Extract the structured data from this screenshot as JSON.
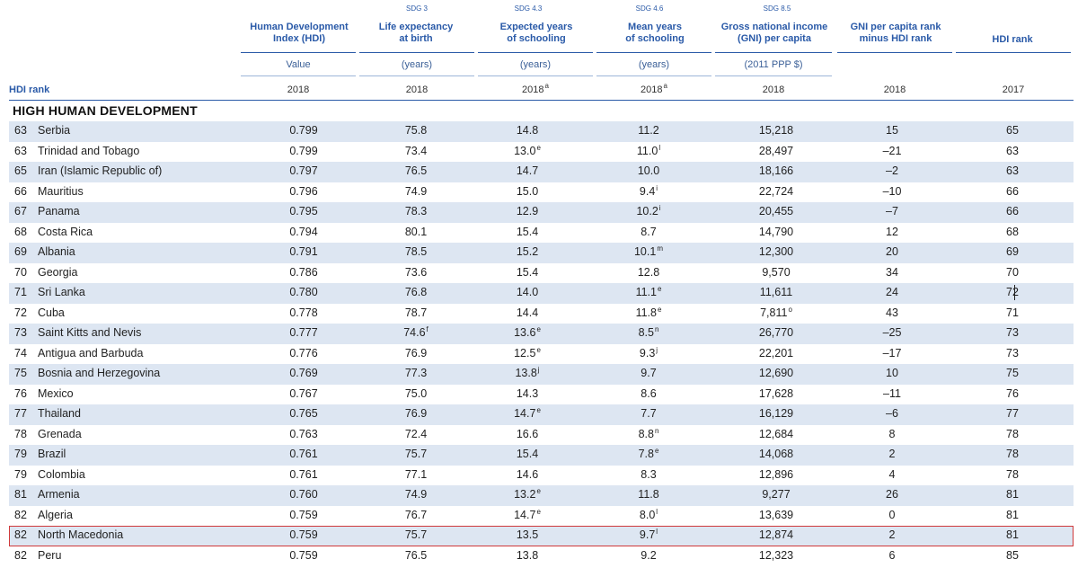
{
  "header": {
    "sdg_labels": [
      "SDG 3",
      "SDG 4.3",
      "SDG 4.6",
      "SDG 8.5"
    ],
    "columns": {
      "hdi": {
        "line1": "Human Development",
        "line2": "Index (HDI)",
        "unit": "Value",
        "year": "2018"
      },
      "life": {
        "line1": "Life expectancy",
        "line2": "at birth",
        "unit": "(years)",
        "year": "2018"
      },
      "exp": {
        "line1": "Expected years",
        "line2": "of schooling",
        "unit": "(years)",
        "year": "2018",
        "year_note": "a"
      },
      "mean": {
        "line1": "Mean years",
        "line2": "of schooling",
        "unit": "(years)",
        "year": "2018",
        "year_note": "a"
      },
      "gni": {
        "line1": "Gross national income",
        "line2": "(GNI) per capita",
        "unit": "(2011 PPP $)",
        "year": "2018"
      },
      "gnirank": {
        "line1": "GNI per capita rank",
        "line2": "minus HDI rank",
        "year": "2018"
      },
      "hdi17": {
        "line1": "HDI rank",
        "year": "2017"
      }
    },
    "rank_label": "HDI rank"
  },
  "section_title": "HIGH HUMAN DEVELOPMENT",
  "rows": [
    {
      "rank": "63",
      "country": "Serbia",
      "hdi": "0.799",
      "life": "75.8",
      "life_n": "",
      "exp": "14.8",
      "exp_n": "",
      "mean": "11.2",
      "mean_n": "",
      "gni": "15,218",
      "gni_n": "",
      "gnirank": "15",
      "hdi17": "65"
    },
    {
      "rank": "63",
      "country": "Trinidad and Tobago",
      "hdi": "0.799",
      "life": "73.4",
      "life_n": "",
      "exp": "13.0",
      "exp_n": "e",
      "mean": "11.0",
      "mean_n": "l",
      "gni": "28,497",
      "gni_n": "",
      "gnirank": "–21",
      "hdi17": "63"
    },
    {
      "rank": "65",
      "country": "Iran (Islamic Republic of)",
      "hdi": "0.797",
      "life": "76.5",
      "life_n": "",
      "exp": "14.7",
      "exp_n": "",
      "mean": "10.0",
      "mean_n": "",
      "gni": "18,166",
      "gni_n": "",
      "gnirank": "–2",
      "hdi17": "63"
    },
    {
      "rank": "66",
      "country": "Mauritius",
      "hdi": "0.796",
      "life": "74.9",
      "life_n": "",
      "exp": "15.0",
      "exp_n": "",
      "mean": "9.4",
      "mean_n": "i",
      "gni": "22,724",
      "gni_n": "",
      "gnirank": "–10",
      "hdi17": "66"
    },
    {
      "rank": "67",
      "country": "Panama",
      "hdi": "0.795",
      "life": "78.3",
      "life_n": "",
      "exp": "12.9",
      "exp_n": "",
      "mean": "10.2",
      "mean_n": "i",
      "gni": "20,455",
      "gni_n": "",
      "gnirank": "–7",
      "hdi17": "66"
    },
    {
      "rank": "68",
      "country": "Costa Rica",
      "hdi": "0.794",
      "life": "80.1",
      "life_n": "",
      "exp": "15.4",
      "exp_n": "",
      "mean": "8.7",
      "mean_n": "",
      "gni": "14,790",
      "gni_n": "",
      "gnirank": "12",
      "hdi17": "68"
    },
    {
      "rank": "69",
      "country": "Albania",
      "hdi": "0.791",
      "life": "78.5",
      "life_n": "",
      "exp": "15.2",
      "exp_n": "",
      "mean": "10.1",
      "mean_n": "m",
      "gni": "12,300",
      "gni_n": "",
      "gnirank": "20",
      "hdi17": "69"
    },
    {
      "rank": "70",
      "country": "Georgia",
      "hdi": "0.786",
      "life": "73.6",
      "life_n": "",
      "exp": "15.4",
      "exp_n": "",
      "mean": "12.8",
      "mean_n": "",
      "gni": "9,570",
      "gni_n": "",
      "gnirank": "34",
      "hdi17": "70"
    },
    {
      "rank": "71",
      "country": "Sri Lanka",
      "hdi": "0.780",
      "life": "76.8",
      "life_n": "",
      "exp": "14.0",
      "exp_n": "",
      "mean": "11.1",
      "mean_n": "e",
      "gni": "11,611",
      "gni_n": "",
      "gnirank": "24",
      "hdi17": "72"
    },
    {
      "rank": "72",
      "country": "Cuba",
      "hdi": "0.778",
      "life": "78.7",
      "life_n": "",
      "exp": "14.4",
      "exp_n": "",
      "mean": "11.8",
      "mean_n": "e",
      "gni": "7,811",
      "gni_n": "o",
      "gnirank": "43",
      "hdi17": "71"
    },
    {
      "rank": "73",
      "country": "Saint Kitts and Nevis",
      "hdi": "0.777",
      "life": "74.6",
      "life_n": "f",
      "exp": "13.6",
      "exp_n": "e",
      "mean": "8.5",
      "mean_n": "n",
      "gni": "26,770",
      "gni_n": "",
      "gnirank": "–25",
      "hdi17": "73"
    },
    {
      "rank": "74",
      "country": "Antigua and Barbuda",
      "hdi": "0.776",
      "life": "76.9",
      "life_n": "",
      "exp": "12.5",
      "exp_n": "e",
      "mean": "9.3",
      "mean_n": "j",
      "gni": "22,201",
      "gni_n": "",
      "gnirank": "–17",
      "hdi17": "73"
    },
    {
      "rank": "75",
      "country": "Bosnia and Herzegovina",
      "hdi": "0.769",
      "life": "77.3",
      "life_n": "",
      "exp": "13.8",
      "exp_n": "j",
      "mean": "9.7",
      "mean_n": "",
      "gni": "12,690",
      "gni_n": "",
      "gnirank": "10",
      "hdi17": "75"
    },
    {
      "rank": "76",
      "country": "Mexico",
      "hdi": "0.767",
      "life": "75.0",
      "life_n": "",
      "exp": "14.3",
      "exp_n": "",
      "mean": "8.6",
      "mean_n": "",
      "gni": "17,628",
      "gni_n": "",
      "gnirank": "–11",
      "hdi17": "76"
    },
    {
      "rank": "77",
      "country": "Thailand",
      "hdi": "0.765",
      "life": "76.9",
      "life_n": "",
      "exp": "14.7",
      "exp_n": "e",
      "mean": "7.7",
      "mean_n": "",
      "gni": "16,129",
      "gni_n": "",
      "gnirank": "–6",
      "hdi17": "77"
    },
    {
      "rank": "78",
      "country": "Grenada",
      "hdi": "0.763",
      "life": "72.4",
      "life_n": "",
      "exp": "16.6",
      "exp_n": "",
      "mean": "8.8",
      "mean_n": "n",
      "gni": "12,684",
      "gni_n": "",
      "gnirank": "8",
      "hdi17": "78"
    },
    {
      "rank": "79",
      "country": "Brazil",
      "hdi": "0.761",
      "life": "75.7",
      "life_n": "",
      "exp": "15.4",
      "exp_n": "",
      "mean": "7.8",
      "mean_n": "e",
      "gni": "14,068",
      "gni_n": "",
      "gnirank": "2",
      "hdi17": "78"
    },
    {
      "rank": "79",
      "country": "Colombia",
      "hdi": "0.761",
      "life": "77.1",
      "life_n": "",
      "exp": "14.6",
      "exp_n": "",
      "mean": "8.3",
      "mean_n": "",
      "gni": "12,896",
      "gni_n": "",
      "gnirank": "4",
      "hdi17": "78"
    },
    {
      "rank": "81",
      "country": "Armenia",
      "hdi": "0.760",
      "life": "74.9",
      "life_n": "",
      "exp": "13.2",
      "exp_n": "e",
      "mean": "11.8",
      "mean_n": "",
      "gni": "9,277",
      "gni_n": "",
      "gnirank": "26",
      "hdi17": "81"
    },
    {
      "rank": "82",
      "country": "Algeria",
      "hdi": "0.759",
      "life": "76.7",
      "life_n": "",
      "exp": "14.7",
      "exp_n": "e",
      "mean": "8.0",
      "mean_n": "l",
      "gni": "13,639",
      "gni_n": "",
      "gnirank": "0",
      "hdi17": "81"
    },
    {
      "rank": "82",
      "country": "North Macedonia",
      "hdi": "0.759",
      "life": "75.7",
      "life_n": "",
      "exp": "13.5",
      "exp_n": "",
      "mean": "9.7",
      "mean_n": "l",
      "gni": "12,874",
      "gni_n": "",
      "gnirank": "2",
      "hdi17": "81",
      "highlight": true
    },
    {
      "rank": "82",
      "country": "Peru",
      "hdi": "0.759",
      "life": "76.5",
      "life_n": "",
      "exp": "13.8",
      "exp_n": "",
      "mean": "9.2",
      "mean_n": "",
      "gni": "12,323",
      "gni_n": "",
      "gnirank": "6",
      "hdi17": "85"
    }
  ],
  "colors": {
    "header_blue": "#2a5aa8",
    "row_shade": "#dde6f2",
    "highlight_border": "#d0393b"
  }
}
